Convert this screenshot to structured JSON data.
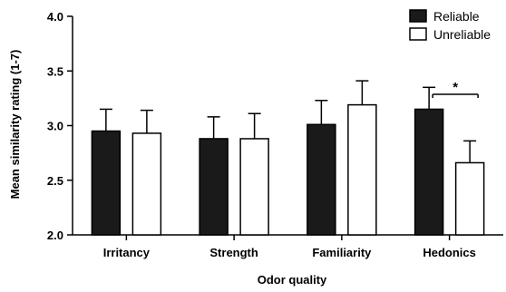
{
  "chart_data": {
    "type": "bar",
    "categories": [
      "Irritancy",
      "Strength",
      "Familiarity",
      "Hedonics"
    ],
    "series": [
      {
        "name": "Reliable",
        "color": "#1a1a1a",
        "values": [
          2.95,
          2.88,
          3.01,
          3.15
        ],
        "errors": [
          0.2,
          0.2,
          0.22,
          0.2
        ]
      },
      {
        "name": "Unreliable",
        "color": "#ffffff",
        "values": [
          2.93,
          2.88,
          3.19,
          2.66
        ],
        "errors": [
          0.21,
          0.23,
          0.22,
          0.2
        ]
      }
    ],
    "title": "",
    "xlabel": "Odor quality",
    "ylabel": "Mean similarity rating (1-7)",
    "ylim": [
      2.0,
      4.0
    ],
    "yticks": [
      "2.0",
      "2.5",
      "3.0",
      "3.5",
      "4.0"
    ],
    "grid": false,
    "legend_position": "top-right",
    "annotations": [
      {
        "text": "*",
        "category": "Hedonics",
        "meaning": "significant difference between series"
      }
    ]
  }
}
